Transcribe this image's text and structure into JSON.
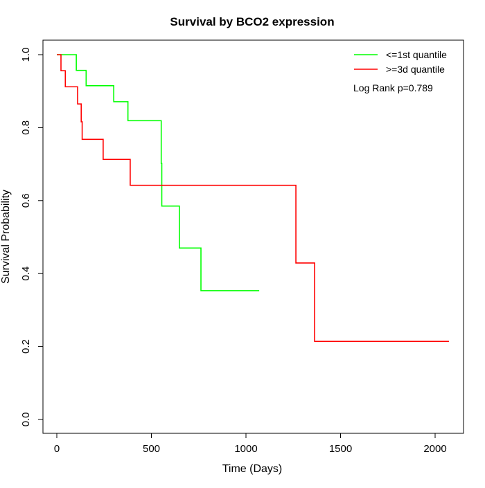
{
  "chart_data": {
    "type": "line",
    "subtype": "kaplan-meier step",
    "title": "Survival by BCO2 expression",
    "xlabel": "Time (Days)",
    "ylabel": "Survival Probability",
    "xlim": [
      0,
      2100
    ],
    "ylim": [
      0,
      1
    ],
    "xticks": [
      0,
      500,
      1000,
      1500,
      2000
    ],
    "yticks": [
      0.0,
      0.2,
      0.4,
      0.6,
      0.8,
      1.0
    ],
    "ytick_labels": [
      "0.0",
      "0.2",
      "0.4",
      "0.6",
      "0.8",
      "1.0"
    ],
    "legend_position": "top-right",
    "annotation": "Log Rank p=0.789",
    "series": [
      {
        "name": "<=1st quantile",
        "color": "#00ff00",
        "x": [
          0,
          103,
          155,
          301,
          376,
          552,
          555,
          648,
          762,
          1070
        ],
        "y": [
          1.0,
          0.957,
          0.915,
          0.871,
          0.819,
          0.702,
          0.585,
          0.47,
          0.353,
          0.353
        ]
      },
      {
        "name": ">=3d quantile",
        "color": "#ff0000",
        "x": [
          0,
          22,
          45,
          110,
          129,
          134,
          245,
          388,
          1264,
          1363,
          2073
        ],
        "y": [
          1.0,
          0.956,
          0.912,
          0.865,
          0.816,
          0.768,
          0.713,
          0.642,
          0.429,
          0.214,
          0.214
        ]
      }
    ]
  }
}
